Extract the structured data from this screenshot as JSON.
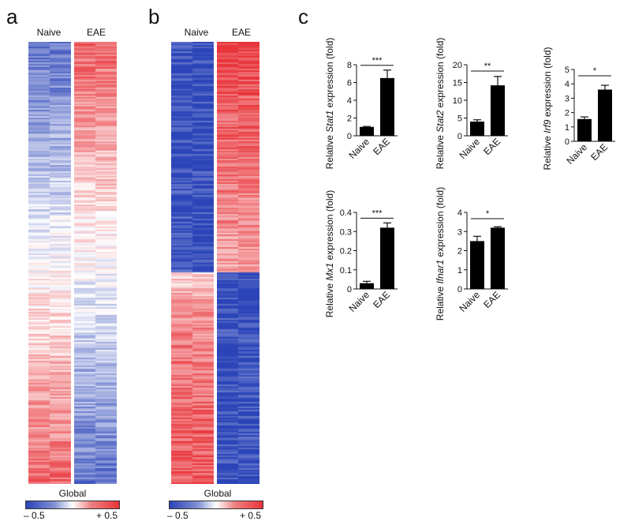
{
  "panels": {
    "a": {
      "letter": "a",
      "col_labels": [
        "Naive",
        "EAE"
      ],
      "footer": "Global",
      "colorbar": {
        "min_label": "– 0.5",
        "max_label": "+ 0.5"
      }
    },
    "b": {
      "letter": "b",
      "col_labels": [
        "Naive",
        "EAE"
      ],
      "footer": "Global",
      "colorbar": {
        "min_label": "– 0.5",
        "max_label": "+ 0.5"
      }
    },
    "c": {
      "letter": "c"
    }
  },
  "colors": {
    "blue": "#2b44b8",
    "red": "#e8343a",
    "white": "#ffffff",
    "bar": "#000000"
  },
  "chart_data": [
    {
      "type": "bar",
      "gene": "Stat1",
      "ylabel_prefix": "Relative ",
      "ylabel_gene": "Stat1",
      "ylabel_suffix": " expression (fold)",
      "categories": [
        "Naive",
        "EAE"
      ],
      "values": [
        1.0,
        6.5
      ],
      "errors": [
        0.05,
        0.9
      ],
      "ylim": [
        0,
        8
      ],
      "yticks": [
        0,
        2,
        4,
        6,
        8
      ],
      "significance": "***"
    },
    {
      "type": "bar",
      "gene": "Stat2",
      "ylabel_prefix": "Relative ",
      "ylabel_gene": "Stat2",
      "ylabel_suffix": " expression (fold)",
      "categories": [
        "Naive",
        "EAE"
      ],
      "values": [
        4.0,
        14.2
      ],
      "errors": [
        0.5,
        2.5
      ],
      "ylim": [
        0,
        20
      ],
      "yticks": [
        0,
        5,
        10,
        15,
        20
      ],
      "significance": "**"
    },
    {
      "type": "bar",
      "gene": "Irf9",
      "ylabel_prefix": "Relative ",
      "ylabel_gene": "Irf9",
      "ylabel_suffix": " expression (fold)",
      "categories": [
        "Naive",
        "EAE"
      ],
      "values": [
        1.55,
        3.6
      ],
      "errors": [
        0.15,
        0.3
      ],
      "ylim": [
        0,
        5
      ],
      "yticks": [
        0,
        1,
        2,
        3,
        4,
        5
      ],
      "significance": "*"
    },
    {
      "type": "bar",
      "gene": "Mx1",
      "ylabel_prefix": "Relative ",
      "ylabel_gene": "Mx1",
      "ylabel_suffix": " expression (fold)",
      "categories": [
        "Naive",
        "EAE"
      ],
      "values": [
        0.03,
        0.32
      ],
      "errors": [
        0.01,
        0.025
      ],
      "ylim": [
        0,
        0.4
      ],
      "yticks": [
        0,
        0.1,
        0.2,
        0.3,
        0.4
      ],
      "significance": "***"
    },
    {
      "type": "bar",
      "gene": "Ifnar1",
      "ylabel_prefix": "Relative ",
      "ylabel_gene": "Ifnar1",
      "ylabel_suffix": " expression (fold)",
      "categories": [
        "Naive",
        "EAE"
      ],
      "values": [
        2.5,
        3.2
      ],
      "errors": [
        0.25,
        0.05
      ],
      "ylim": [
        0,
        4
      ],
      "yticks": [
        0,
        1,
        2,
        3,
        4
      ],
      "significance": "*"
    }
  ]
}
